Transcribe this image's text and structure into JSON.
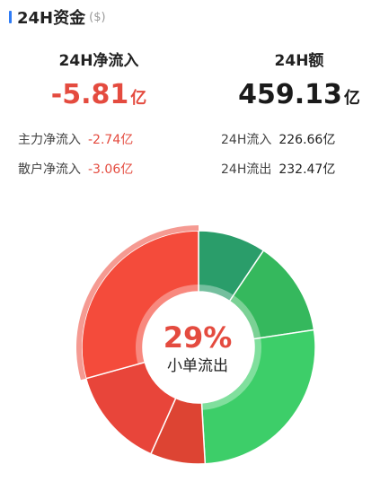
{
  "header": {
    "title": "24H资金",
    "unit": "($)"
  },
  "net_inflow": {
    "label": "24H净流入",
    "value": "-5.81",
    "unit": "亿"
  },
  "volume": {
    "label": "24H额",
    "value": "459.13",
    "unit": "亿"
  },
  "details": {
    "main_net": {
      "label": "主力净流入",
      "value": "-2.74亿"
    },
    "retail_net": {
      "label": "散户净流入",
      "value": "-3.06亿"
    },
    "inflow": {
      "label": "24H流入",
      "value": "226.66亿"
    },
    "outflow": {
      "label": "24H流出",
      "value": "232.47亿"
    }
  },
  "donut_center": {
    "percent": "29%",
    "label": "小单流出"
  },
  "colors": {
    "accent": "#2f7cf6",
    "red": "#e44b3f",
    "green_dark": "#2a9d6a",
    "green_mid": "#35b85d",
    "green_light": "#3dce69",
    "red_light": "#f44b3b",
    "red_mid": "#e8453a",
    "red_dark": "#dd4433",
    "highlight": "#f59a92"
  },
  "chart_data": {
    "type": "pie",
    "highlighted": "小单流出",
    "slices": [
      {
        "value": 0.094,
        "color": "#2a9d6a"
      },
      {
        "value": 0.132,
        "color": "#35b85d"
      },
      {
        "value": 0.265,
        "color": "#3dce69"
      },
      {
        "value": 0.076,
        "color": "#dd4433"
      },
      {
        "value": 0.14,
        "color": "#e8453a"
      },
      {
        "value": 0.293,
        "color": "#f44b3b"
      }
    ]
  }
}
